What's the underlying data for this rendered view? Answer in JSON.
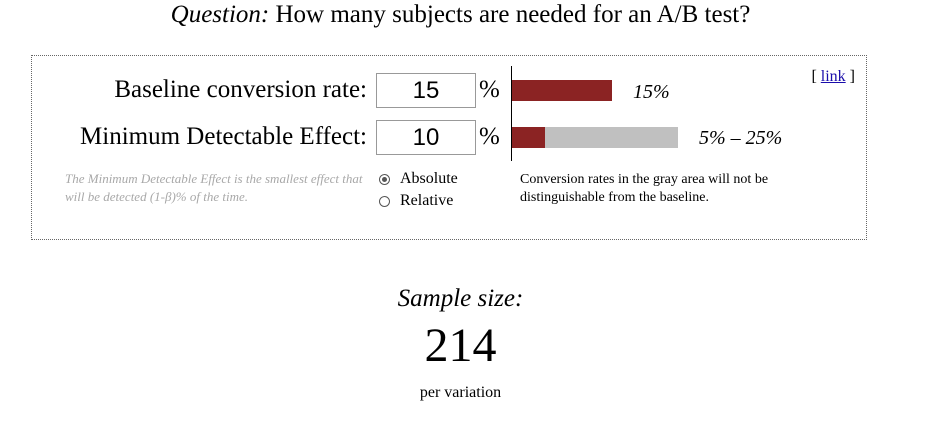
{
  "header": {
    "question_label": "Question:",
    "question_text": "How many subjects are needed for an A/B test?"
  },
  "panel": {
    "link_bracket_open": "[",
    "link_text": "link",
    "link_bracket_close": "]",
    "baseline": {
      "label": "Baseline conversion rate:",
      "value": "15",
      "unit": "%",
      "bar_fraction": 0.15,
      "bar_text": "15%"
    },
    "mde": {
      "label": "Minimum Detectable Effect:",
      "value": "10",
      "unit": "%",
      "range_low_fraction": 0.05,
      "range_high_fraction": 0.25,
      "bar_text": "5% – 25%"
    },
    "mde_note": "The Minimum Detectable Effect is the smallest effect that will be detected (1-β)% of the time.",
    "mode_options": [
      {
        "label": "Absolute",
        "selected": true
      },
      {
        "label": "Relative",
        "selected": false
      }
    ],
    "gray_area_note": "Conversion rates in the gray area will not be distinguishable from the baseline."
  },
  "result": {
    "title": "Sample size:",
    "value": "214",
    "unit": "per variation"
  },
  "colors": {
    "bar_fill": "#8b2323",
    "bar_gray": "#c0c0c0",
    "note_text": "#a8a8a8",
    "link": "#1a0dab"
  }
}
